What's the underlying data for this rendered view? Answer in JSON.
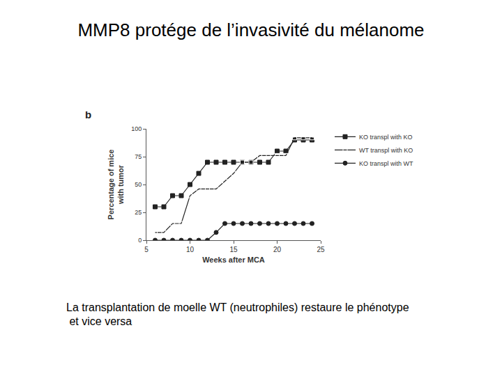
{
  "slide": {
    "title": "MMP8 protége de l’invasivité du mélanome",
    "caption": [
      "La transplantation de moelle WT (neutrophiles) restaure le phénotype",
      " et vice versa"
    ]
  },
  "chart_data": {
    "type": "line",
    "annotations": [
      "b"
    ],
    "xlabel": "Weeks after MCA",
    "ylabel": [
      "Percentage of mice",
      "with tumor"
    ],
    "x": [
      6,
      7,
      8,
      9,
      10,
      11,
      12,
      13,
      14,
      15,
      16,
      17,
      18,
      19,
      20,
      21,
      22,
      23,
      24
    ],
    "series": [
      {
        "name": "KO transpl with KO",
        "color": "#222222",
        "marker": "square",
        "line_style": "solid",
        "values": [
          30,
          30,
          40,
          40,
          50,
          60,
          70,
          70,
          70,
          70,
          70,
          70,
          70,
          70,
          80,
          80,
          90,
          90,
          90
        ]
      },
      {
        "name": "WT transpl with KO",
        "color": "#222222",
        "marker": "square-open",
        "line_style": "solid",
        "values": [
          7,
          7,
          15,
          15,
          40,
          46,
          46,
          46,
          53,
          60,
          70,
          70,
          76,
          76,
          76,
          76,
          92,
          92,
          92
        ]
      },
      {
        "name": "KO transpl with WT",
        "color": "#222222",
        "marker": "circle",
        "line_style": "solid",
        "values": [
          0,
          0,
          0,
          0,
          0,
          0,
          0,
          7,
          15,
          15,
          15,
          15,
          15,
          15,
          15,
          15,
          15,
          15,
          15
        ]
      }
    ],
    "xlim": [
      5,
      25
    ],
    "xticks": [
      5,
      10,
      15,
      20,
      25
    ],
    "ylim": [
      0,
      100
    ],
    "yticks": [
      0,
      25,
      50,
      75,
      100
    ],
    "grid": false,
    "legend": "right"
  }
}
